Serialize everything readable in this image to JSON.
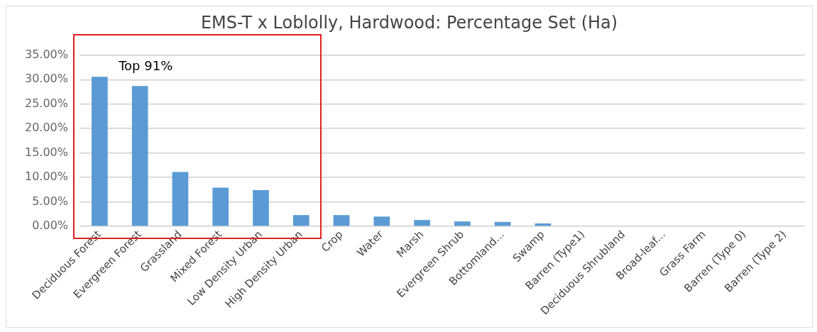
{
  "chart_data": {
    "type": "bar",
    "title": "EMS-T x Loblolly, Hardwood: Percentage Set (Ha)",
    "categories": [
      "Deciduous Forest",
      "Evergreen Forest",
      "Grassland",
      "Mixed Forest",
      "Low Density Urban",
      "High Density Urban",
      "Crop",
      "Water",
      "Marsh",
      "Evergreen Shrub",
      "Bottomland...",
      "Swamp",
      "Barren (Type1)",
      "Deciduous Shrubland",
      "Broad-leaf...",
      "Grass Farm",
      "Barren (Type 0)",
      "Barren (Type 2)"
    ],
    "values": [
      30.6,
      28.7,
      11.1,
      7.9,
      7.4,
      2.3,
      2.3,
      2.0,
      1.3,
      1.0,
      0.9,
      0.6,
      0,
      0,
      0,
      0,
      0,
      0
    ],
    "color": "#5b9bd5",
    "ylim": [
      0,
      35
    ],
    "yticks": [
      {
        "value": 0,
        "label": "0.00%"
      },
      {
        "value": 5,
        "label": "5.00%"
      },
      {
        "value": 10,
        "label": "10.00%"
      },
      {
        "value": 15,
        "label": "15.00%"
      },
      {
        "value": 20,
        "label": "20.00%"
      },
      {
        "value": 25,
        "label": "25.00%"
      },
      {
        "value": 30,
        "label": "30.00%"
      },
      {
        "value": 35,
        "label": "35.00%"
      }
    ],
    "grid": "y",
    "annotations": [
      "Top 91%"
    ]
  }
}
